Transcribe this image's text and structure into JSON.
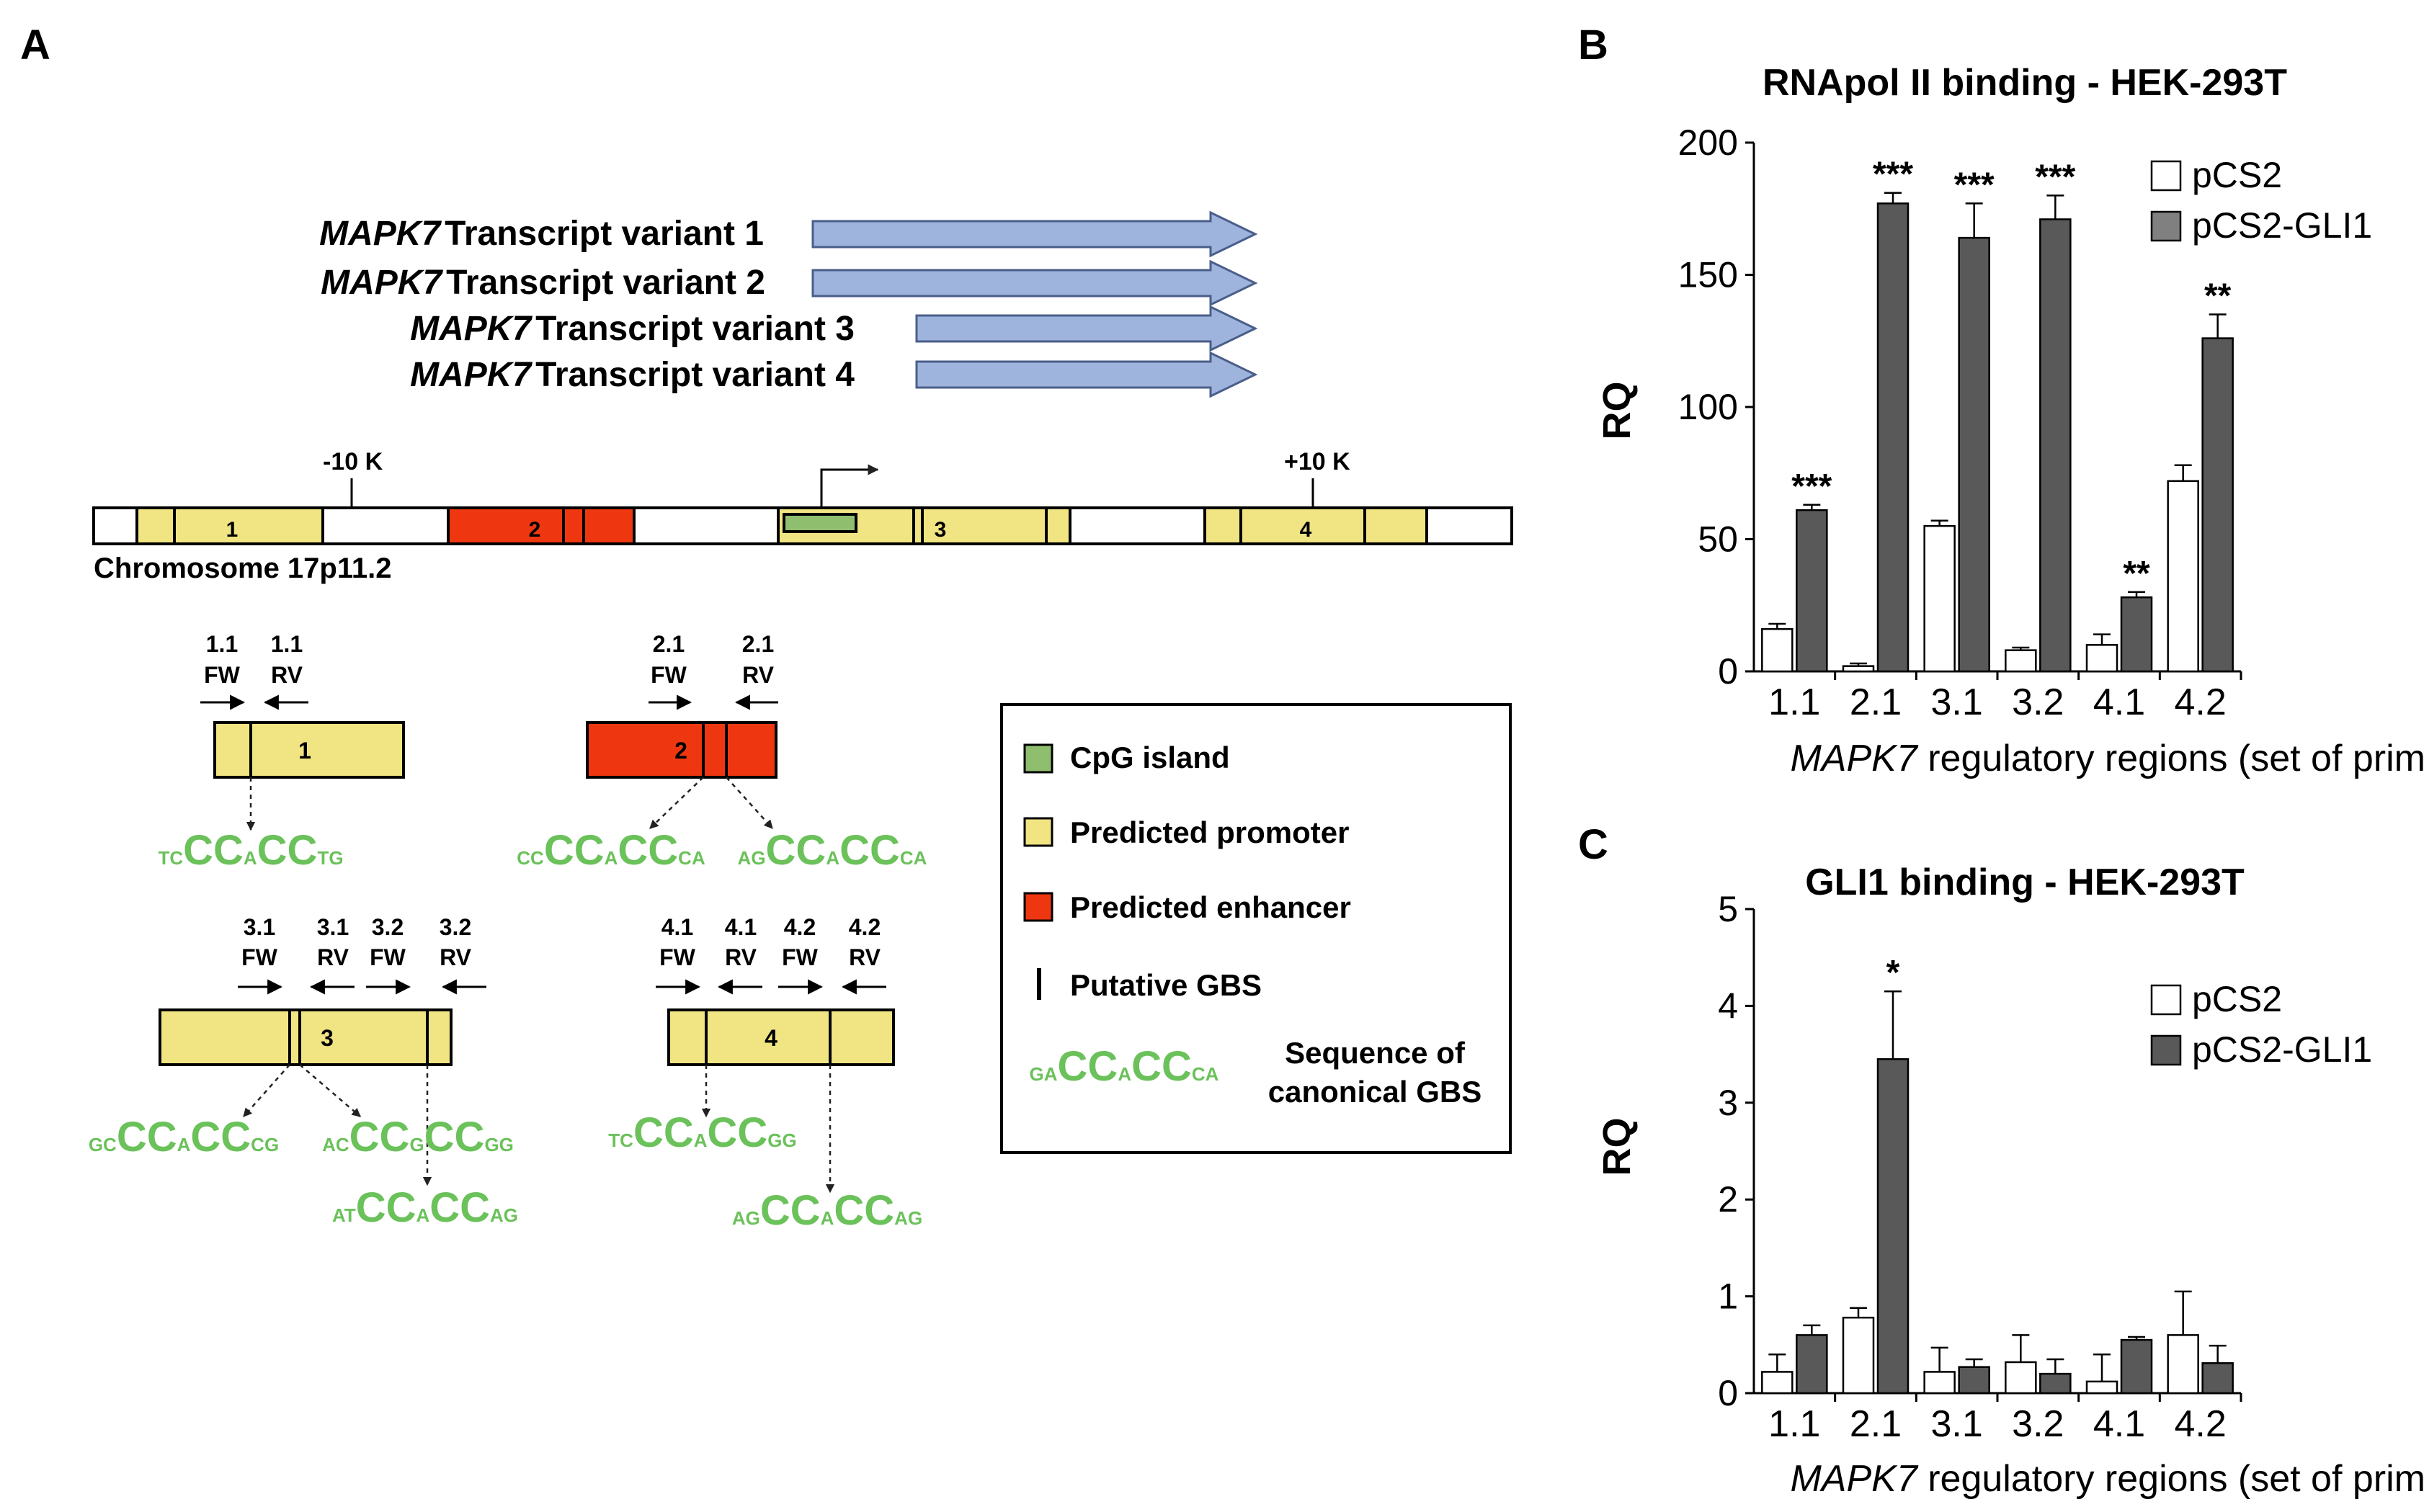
{
  "panel_labels": {
    "a": "A",
    "b": "B",
    "c": "C"
  },
  "panel_a": {
    "transcripts": [
      {
        "gene": "MAPK7",
        "label": "Transcript variant 1"
      },
      {
        "gene": "MAPK7",
        "label": "Transcript variant 2"
      },
      {
        "gene": "MAPK7",
        "label": "Transcript variant 3"
      },
      {
        "gene": "MAPK7",
        "label": "Transcript variant 4"
      }
    ],
    "chromosome_label": "Chromosome 17p11.2",
    "markers": {
      "minus": "-10 K",
      "plus": "+10 K"
    },
    "region_numbers": [
      "1",
      "2",
      "3",
      "4"
    ],
    "primers": {
      "r1_fw": [
        "1.1",
        "FW"
      ],
      "r1_rv": [
        "1.1",
        "RV"
      ],
      "r2_fw": [
        "2.1",
        "FW"
      ],
      "r2_rv": [
        "2.1",
        "RV"
      ],
      "r3_fw1": [
        "3.1",
        "FW"
      ],
      "r3_rv1": [
        "3.1",
        "RV"
      ],
      "r3_fw2": [
        "3.2",
        "FW"
      ],
      "r3_rv2": [
        "3.2",
        "RV"
      ],
      "r4_fw1": [
        "4.1",
        "FW"
      ],
      "r4_rv1": [
        "4.1",
        "RV"
      ],
      "r4_fw2": [
        "4.2",
        "FW"
      ],
      "r4_rv2": [
        "4.2",
        "RV"
      ]
    },
    "gbs": {
      "r1": [
        "TC",
        "CC",
        "A",
        "CC",
        "TG"
      ],
      "r2a": [
        "CC",
        "CC",
        "A",
        "CC",
        "CA"
      ],
      "r2b": [
        "AG",
        "CC",
        "A",
        "CC",
        "CA"
      ],
      "r3a": [
        "GC",
        "CC",
        "A",
        "CC",
        "CG"
      ],
      "r3b": [
        "AC",
        "CC",
        "G",
        "CC",
        "GG"
      ],
      "r3c": [
        "AT",
        "CC",
        "A",
        "CC",
        "AG"
      ],
      "r4a": [
        "TC",
        "CC",
        "A",
        "CC",
        "GG"
      ],
      "r4b": [
        "AG",
        "CC",
        "A",
        "CC",
        "AG"
      ]
    },
    "legend": {
      "cpg": "CpG island",
      "promoter": "Predicted promoter",
      "enhancer": "Predicted enhancer",
      "gbs": "Putative GBS",
      "canonical_seq": [
        "GA",
        "CC",
        "A",
        "CC",
        "CA"
      ],
      "canonical_label_1": "Sequence of",
      "canonical_label_2": "canonical GBS"
    }
  },
  "colors": {
    "arrow_fill": "#9fb4dc",
    "arrow_stroke": "#4a5e8a",
    "promoter": "#f0e483",
    "enhancer": "#ee3710",
    "cpg": "#8fbf6e",
    "gbs_text": "#6bc15a",
    "bar_light": "#ffffff",
    "bar_dark": "#595959"
  },
  "chart_data": [
    {
      "type": "bar",
      "panel": "B",
      "title": "RNApol II binding - HEK-293T",
      "xlabel_italic": "MAPK7",
      "xlabel_rest": " regulatory regions (set of primers)",
      "ylabel": "RQ",
      "ylim": [
        0,
        200
      ],
      "yticks": [
        0,
        50,
        100,
        150,
        200
      ],
      "categories": [
        "1.1",
        "2.1",
        "3.1",
        "3.2",
        "4.1",
        "4.2"
      ],
      "series": [
        {
          "name": "pCS2",
          "values": [
            16,
            2,
            55,
            8,
            10,
            72
          ],
          "errors": [
            2,
            1,
            2,
            1,
            4,
            6
          ]
        },
        {
          "name": "pCS2-GLI1",
          "values": [
            61,
            177,
            164,
            171,
            28,
            126
          ],
          "errors": [
            2,
            4,
            13,
            9,
            2,
            9
          ]
        }
      ],
      "significance": [
        "***",
        "***",
        "***",
        "***",
        "**",
        "**"
      ],
      "legend_position": "top-right"
    },
    {
      "type": "bar",
      "panel": "C",
      "title": "GLI1 binding - HEK-293T",
      "xlabel_italic": "MAPK7",
      "xlabel_rest": " regulatory regions (set of primers)",
      "ylabel": "RQ",
      "ylim": [
        0,
        5
      ],
      "yticks": [
        0,
        1,
        2,
        3,
        4,
        5
      ],
      "categories": [
        "1.1",
        "2.1",
        "3.1",
        "3.2",
        "4.1",
        "4.2"
      ],
      "series": [
        {
          "name": "pCS2",
          "values": [
            0.22,
            0.78,
            0.22,
            0.32,
            0.12,
            0.6
          ],
          "errors": [
            0.18,
            0.1,
            0.25,
            0.28,
            0.28,
            0.45
          ]
        },
        {
          "name": "pCS2-GLI1",
          "values": [
            0.6,
            3.45,
            0.27,
            0.2,
            0.55,
            0.31
          ],
          "errors": [
            0.1,
            0.7,
            0.08,
            0.15,
            0.03,
            0.18
          ]
        }
      ],
      "significance": [
        "",
        "*",
        "",
        "",
        "",
        ""
      ],
      "legend_position": "top-right"
    }
  ]
}
